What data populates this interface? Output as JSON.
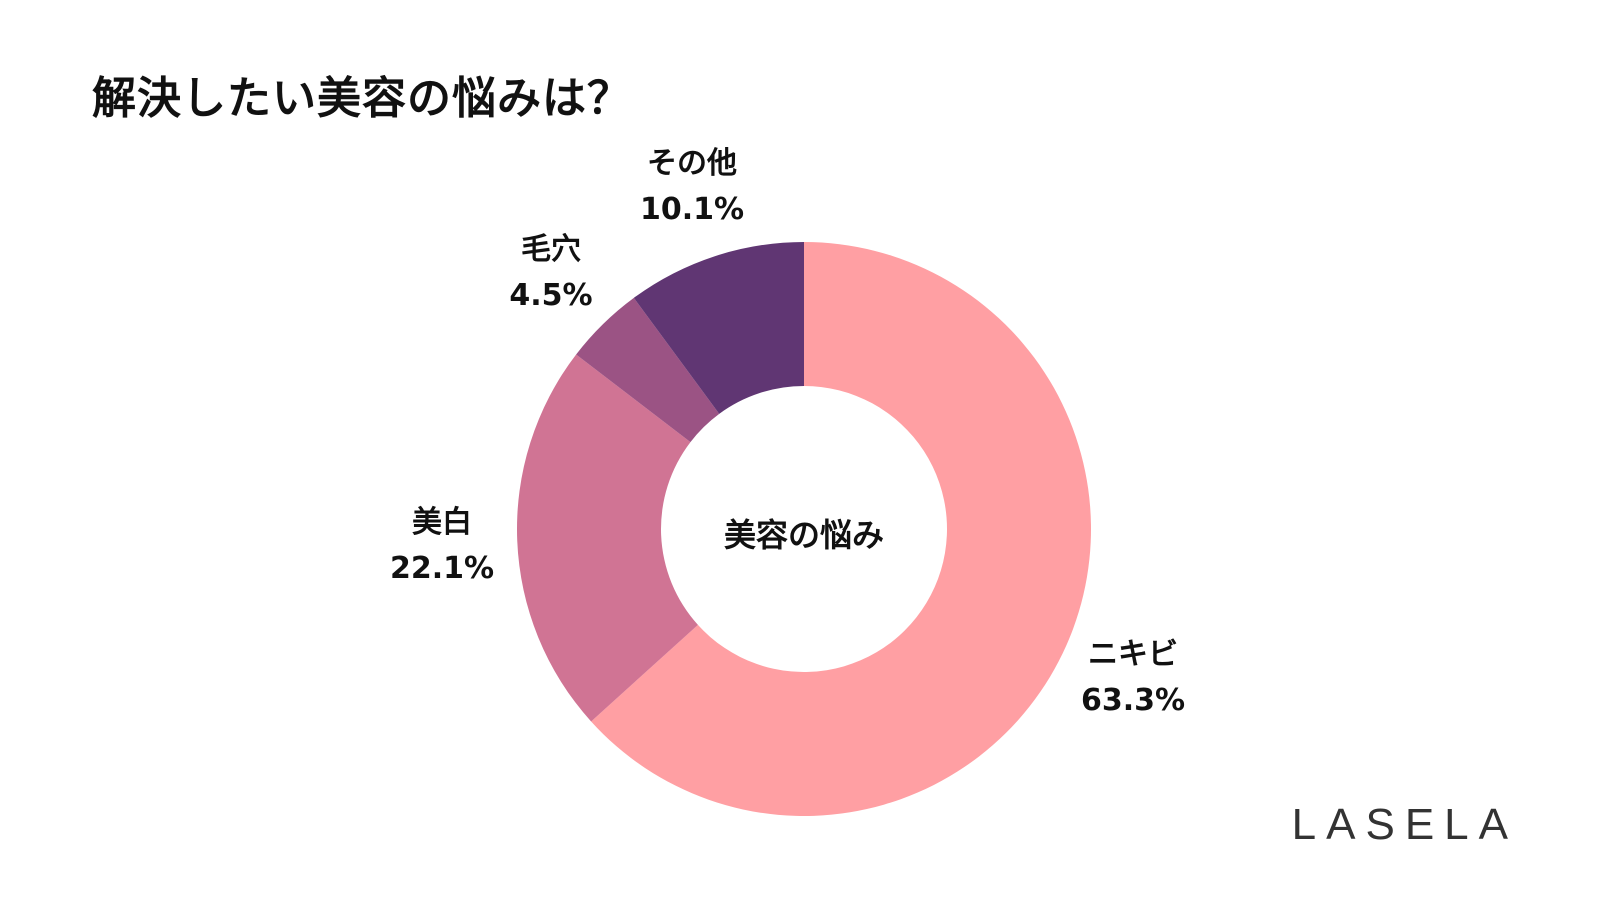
{
  "title": "解決したい美容の悩みは？",
  "center_label": "美容の悩み",
  "logo": "LASELA",
  "chart_data": {
    "type": "pie",
    "variant": "donut",
    "title": "解決したい美容の悩みは？",
    "center_text": "美容の悩み",
    "categories": [
      "ニキビ",
      "美白",
      "毛穴",
      "その他"
    ],
    "values": [
      63.3,
      22.1,
      4.5,
      10.1
    ],
    "labels": [
      "63.3%",
      "22.1%",
      "4.5%",
      "10.1%"
    ],
    "colors": [
      "#FF9FA3",
      "#D07494",
      "#9B5384",
      "#603673"
    ],
    "start_angle": "12 o'clock, clockwise",
    "legend": "none (direct labels)"
  },
  "slices": [
    {
      "name": "ニキビ",
      "value": "63.3%",
      "color": "#FF9FA3"
    },
    {
      "name": "美白",
      "value": "22.1%",
      "color": "#D07494"
    },
    {
      "name": "毛穴",
      "value": "4.5%",
      "color": "#9B5384"
    },
    {
      "name": "その他",
      "value": "10.1%",
      "color": "#603673"
    }
  ]
}
